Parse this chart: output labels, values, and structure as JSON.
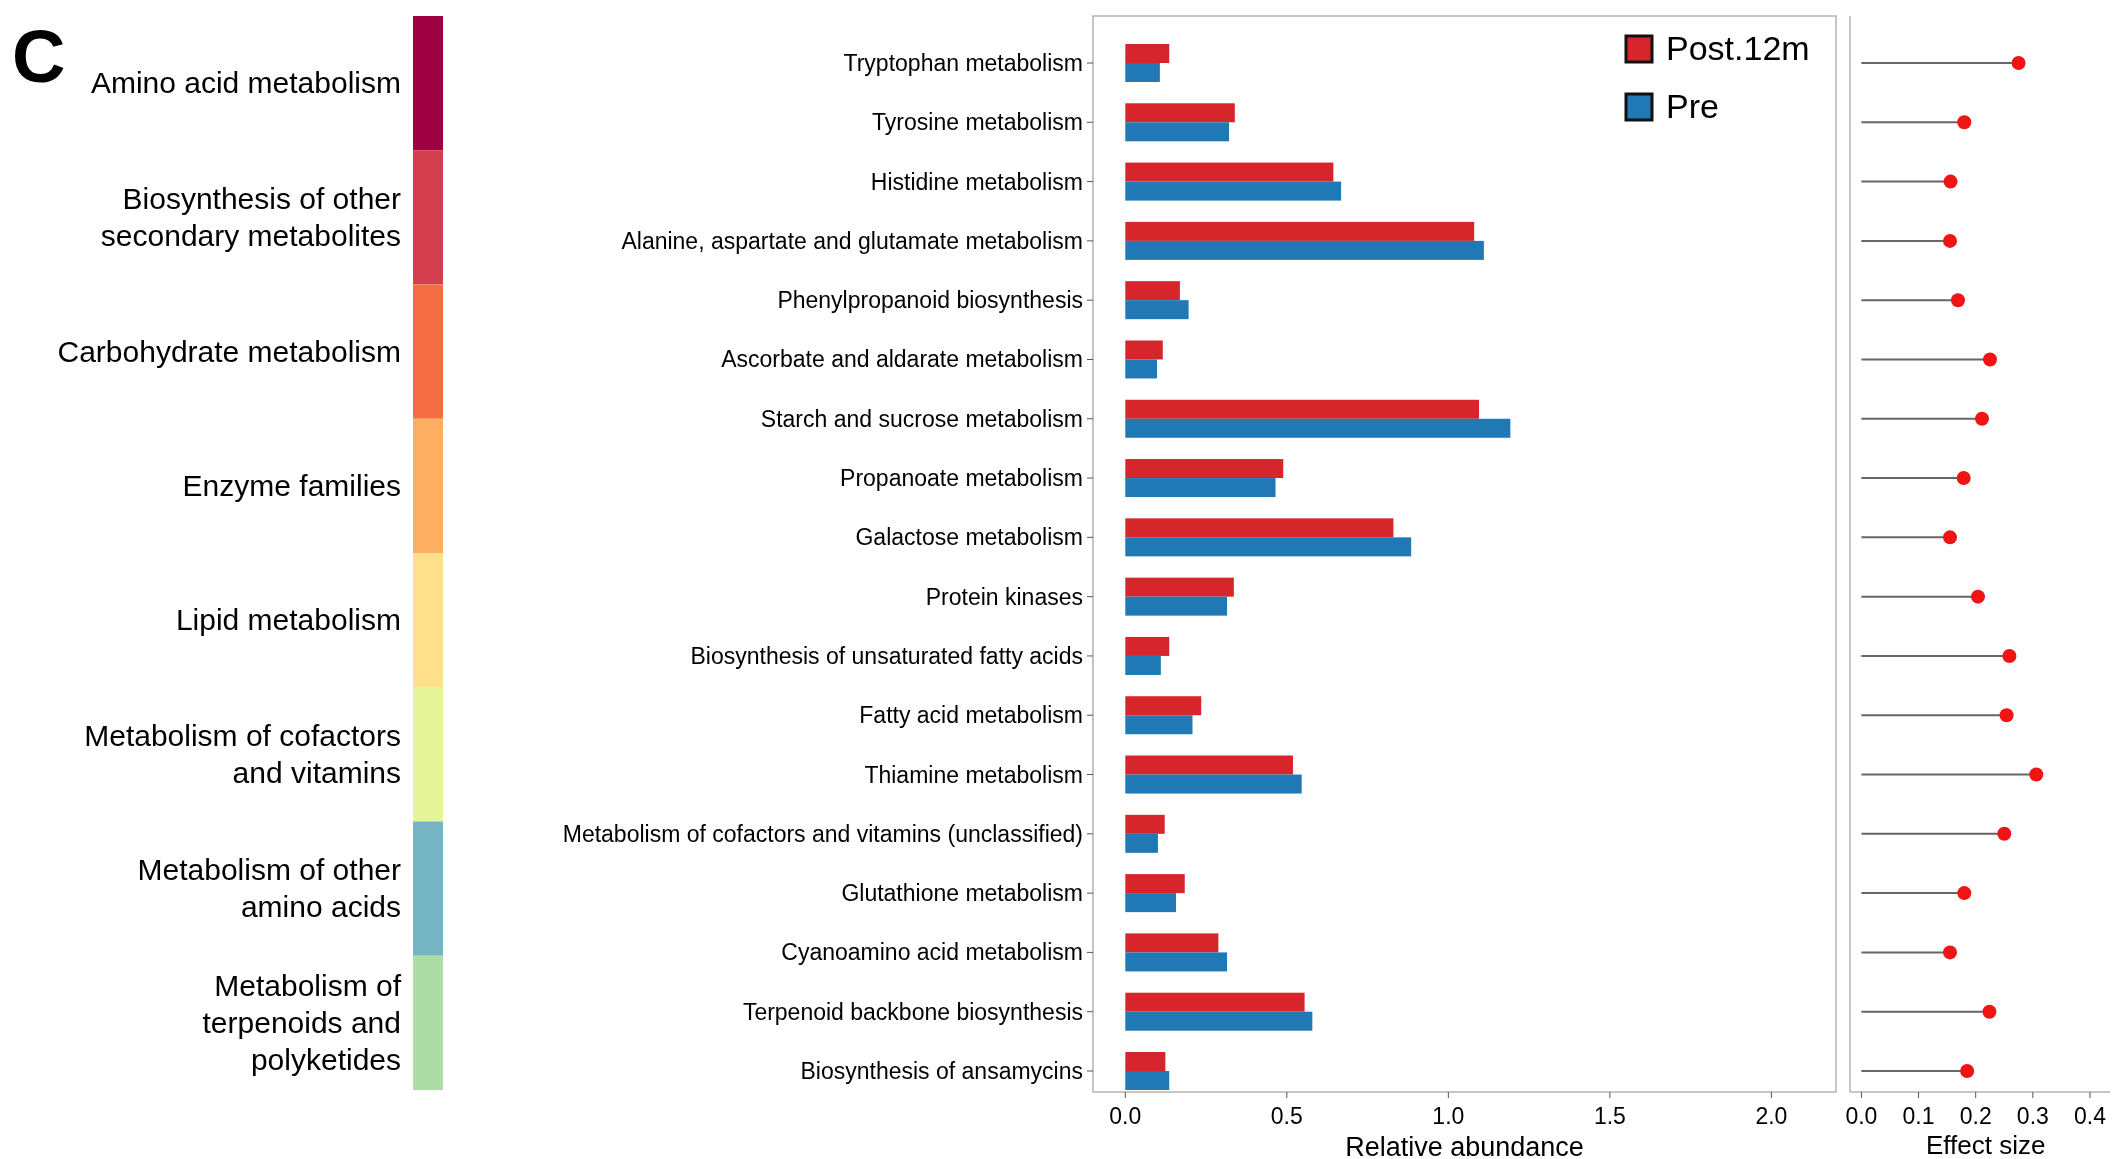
{
  "chart_data": [
    {
      "type": "other",
      "annotations": [
        "C"
      ],
      "categories": [
        "Amino acid metabolism",
        "Biosynthesis of other secondary metabolites",
        "Carbohydrate metabolism",
        "Enzyme families",
        "Lipid metabolism",
        "Metabolism of cofactors and vitamins",
        "Metabolism of other amino acids",
        "Metabolism of terpenoids and polyketides"
      ],
      "colors": [
        "#9e0142",
        "#d53e4f",
        "#f46d43",
        "#fdae61",
        "#fee08b",
        "#e6f598",
        "#75b4c2",
        "#abdda4"
      ]
    },
    {
      "type": "bar",
      "orientation": "horizontal",
      "legend": "top right",
      "xlabel": "Relative abundance",
      "categories": [
        "Tryptophan metabolism",
        "Tyrosine metabolism",
        "Histidine metabolism",
        "Alanine, aspartate and glutamate metabolism",
        "Phenylpropanoid biosynthesis",
        "Ascorbate and aldarate metabolism",
        "Starch and sucrose metabolism",
        "Propanoate metabolism",
        "Galactose metabolism",
        "Protein kinases",
        "Biosynthesis of unsaturated fatty acids",
        "Fatty acid metabolism",
        "Thiamine metabolism",
        "Metabolism of cofactors and vitamins (unclassified)",
        "Glutathione metabolism",
        "Cyanoamino acid metabolism",
        "Terpenoid backbone biosynthesis",
        "Biosynthesis of ansamycins"
      ],
      "xlim": [
        -0.1,
        2.2
      ],
      "xticks": [
        {
          "value": 0,
          "label": "0.0"
        },
        {
          "value": 0.5,
          "label": "0.5"
        },
        {
          "value": 1,
          "label": "1.0"
        },
        {
          "value": 1.5,
          "label": "1.5"
        },
        {
          "value": 2,
          "label": "2.0"
        }
      ],
      "series": [
        {
          "name": "Post.12m",
          "color": "#d7262b",
          "values": [
            0.136,
            0.339,
            0.644,
            1.08,
            0.169,
            0.116,
            1.095,
            0.489,
            0.83,
            0.336,
            0.136,
            0.235,
            0.519,
            0.122,
            0.184,
            0.288,
            0.555,
            0.124
          ]
        },
        {
          "name": "Pre",
          "color": "#2079b4",
          "values": [
            0.107,
            0.321,
            0.668,
            1.11,
            0.196,
            0.098,
            1.192,
            0.465,
            0.885,
            0.315,
            0.11,
            0.208,
            0.546,
            0.101,
            0.157,
            0.315,
            0.579,
            0.136
          ]
        }
      ]
    },
    {
      "type": "lollipop",
      "orientation": "horizontal",
      "tick_labels": "x",
      "xlabel": "Effect size",
      "color": "#f01414",
      "categories": [
        null,
        null,
        null,
        null,
        null,
        null,
        null,
        null,
        null,
        null,
        null,
        null,
        null,
        null,
        null,
        null,
        null,
        null
      ],
      "xlim": [
        -0.02,
        0.435
      ],
      "xticks": [
        {
          "value": 0,
          "label": "0.0"
        },
        {
          "value": 0.1,
          "label": "0.1"
        },
        {
          "value": 0.2,
          "label": "0.2"
        },
        {
          "value": 0.3,
          "label": "0.3"
        },
        {
          "value": 0.4,
          "label": "0.4"
        }
      ],
      "values": [
        0.275,
        0.18,
        0.156,
        0.155,
        0.169,
        0.225,
        0.211,
        0.179,
        0.155,
        0.204,
        0.259,
        0.254,
        0.306,
        0.25,
        0.18,
        0.155,
        0.224,
        0.185
      ]
    }
  ]
}
